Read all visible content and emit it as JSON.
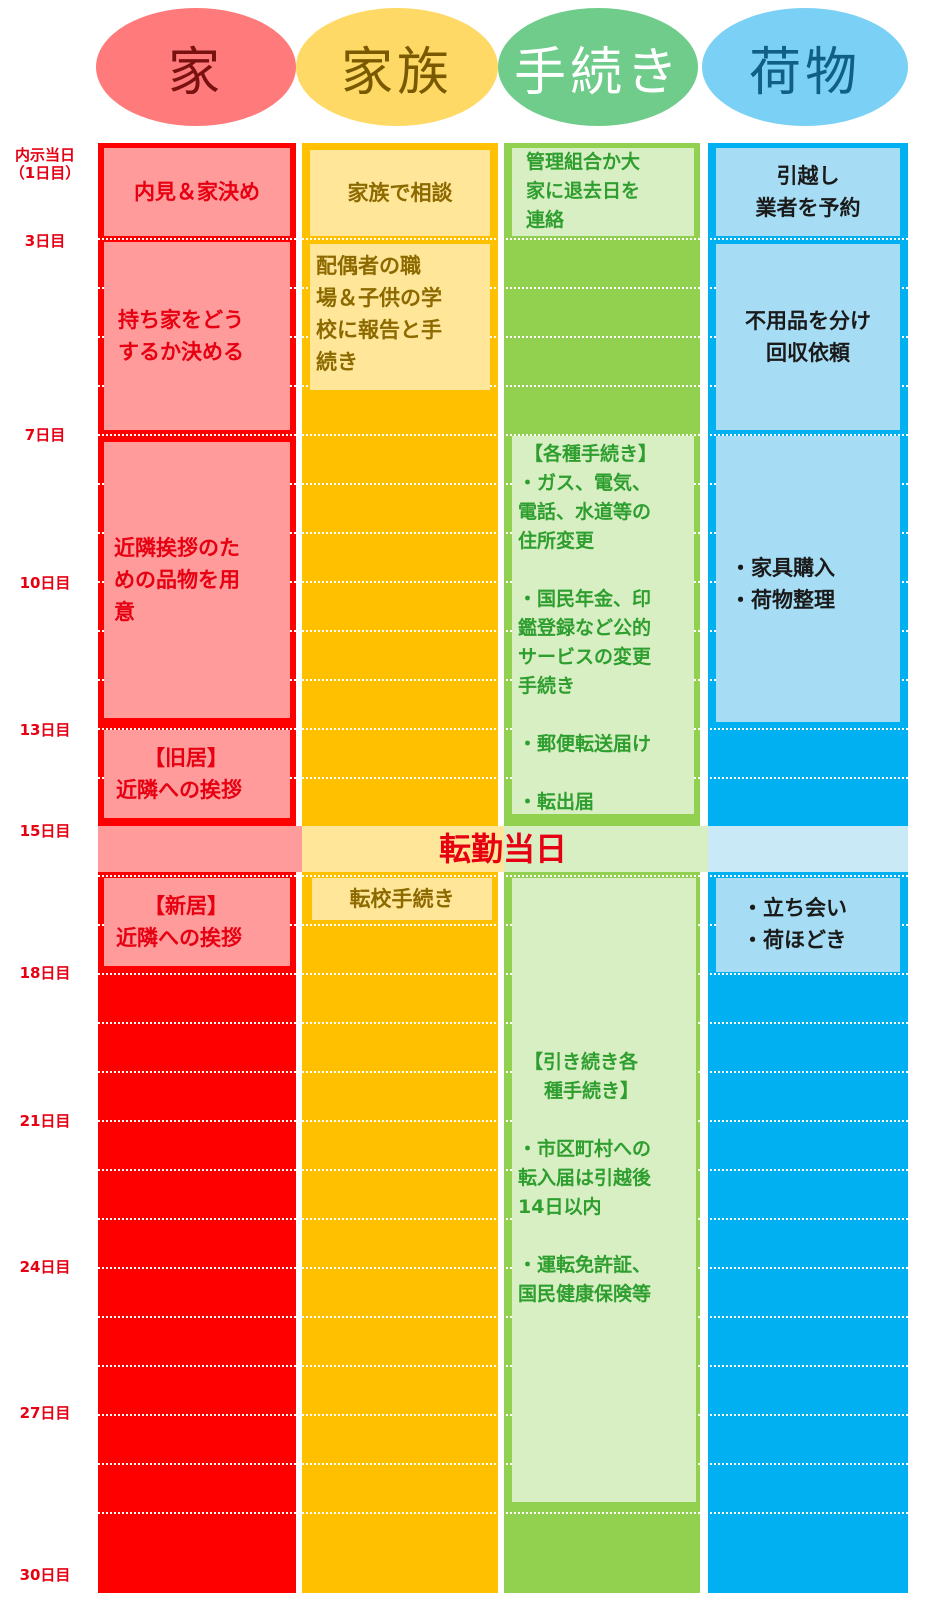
{
  "headers": {
    "house": "家",
    "family": "家族",
    "procedures": "手続き",
    "luggage": "荷物"
  },
  "days": {
    "d1_line1": "内示当日",
    "d1_line2": "（1日目）",
    "d3": "3日目",
    "d7": "7日目",
    "d10": "10日目",
    "d13": "13日目",
    "d15": "15日目",
    "d18": "18日目",
    "d21": "21日目",
    "d24": "24日目",
    "d27": "27日目",
    "d30": "30日目"
  },
  "house": {
    "viewing": "内見＆家決め",
    "own_home_l1": "持ち家をどう",
    "own_home_l2": "するか決める",
    "gifts_l1": "近隣挨拶のた",
    "gifts_l2": "めの品物を用",
    "gifts_l3": "意",
    "old_l1": "【旧居】",
    "old_l2": "近隣への挨拶",
    "new_l1": "【新居】",
    "new_l2": "近隣への挨拶"
  },
  "family": {
    "consult": "家族で相談",
    "report_l1": "配偶者の職",
    "report_l2": "場＆子供の学",
    "report_l3": "校に報告と手",
    "report_l4": "続き",
    "school": "転校手続き"
  },
  "procedures": {
    "notify_l1": "管理組合か大",
    "notify_l2": "家に退去日を",
    "notify_l3": "連絡",
    "various_title": "【各種手続き】",
    "gas_l1": "・ガス、電気、",
    "gas_l2": "電話、水道等の",
    "gas_l3": "住所変更",
    "pension_l1": "・国民年金、印",
    "pension_l2": "鑑登録など公的",
    "pension_l3": "サービスの変更",
    "pension_l4": "手続き",
    "mail": "・郵便転送届け",
    "moveout": "・転出届",
    "cont_l1": "【引き続き各",
    "cont_l2": "種手続き】",
    "city_l1": "・市区町村への",
    "city_l2": "転入届は引越後",
    "city_l3": "14日以内",
    "license_l1": "・運転免許証、",
    "license_l2": "国民健康保険等"
  },
  "luggage": {
    "mover_l1": "引越し",
    "mover_l2": "業者を予約",
    "sort_l1": "不用品を分け",
    "sort_l2": "回収依頼",
    "buy_l1": "・家具購入",
    "buy_l2": "・荷物整理",
    "attend_l1": "・立ち会い",
    "attend_l2": "・荷ほどき"
  },
  "transfer_day": "転勤当日",
  "colors": {
    "house": "#ff0000",
    "house_box": "#ff9b9b",
    "family": "#ffc000",
    "family_box": "#ffe699",
    "procedures": "#92d050",
    "procedures_box": "#d8efc4",
    "luggage": "#00b0f0",
    "luggage_box": "#a6ddf4",
    "day_label": "#e60012"
  }
}
